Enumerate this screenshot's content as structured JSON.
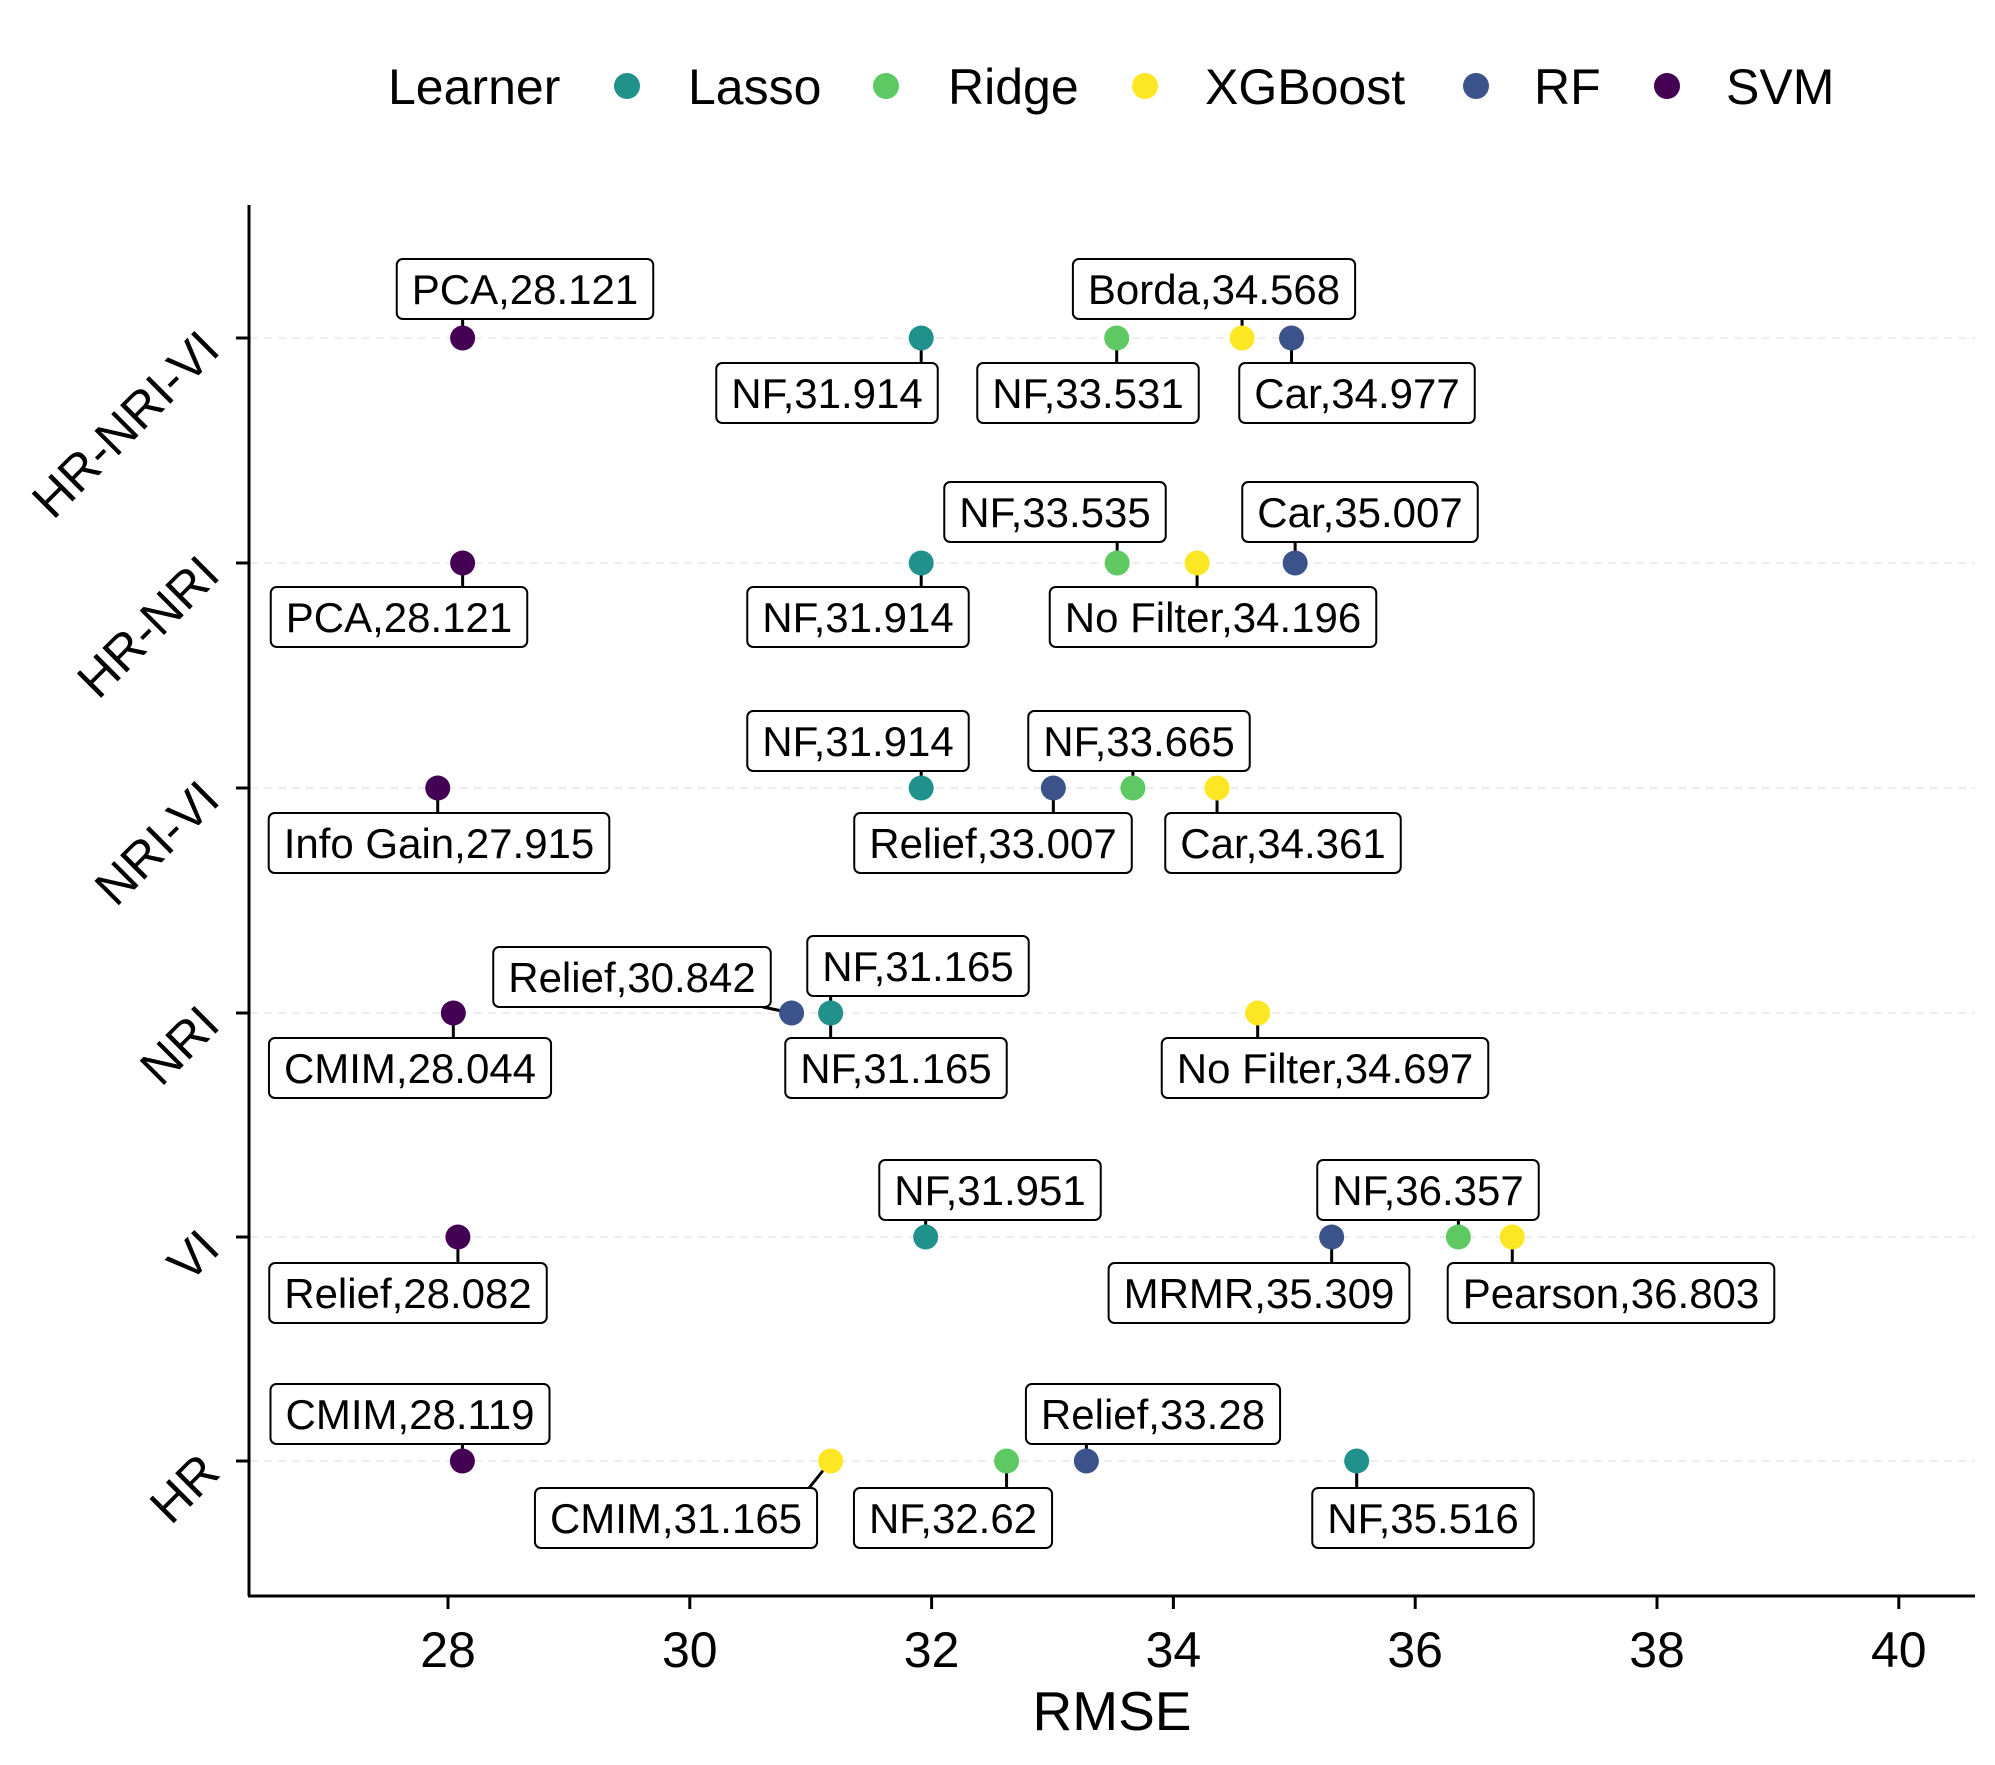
{
  "chart_data": {
    "type": "scatter",
    "xlabel": "RMSE",
    "ylabel": "",
    "xlim": [
      26.5,
      40.5
    ],
    "x_ticks": [
      "28",
      "30",
      "32",
      "34",
      "36",
      "38",
      "40"
    ],
    "y_categories": [
      "HR",
      "VI",
      "NRI",
      "NRI-VI",
      "HR-NRI",
      "HR-NRI-VI"
    ],
    "grid": "horizontal dashed at each category",
    "legend": {
      "title": "Learner",
      "position": "top",
      "entries": [
        {
          "name": "Lasso",
          "color": "#21918c"
        },
        {
          "name": "Ridge",
          "color": "#5ec962"
        },
        {
          "name": "XGBoost",
          "color": "#fde725"
        },
        {
          "name": "RF",
          "color": "#3b528b"
        },
        {
          "name": "SVM",
          "color": "#440154"
        }
      ]
    },
    "points": [
      {
        "category": "HR-NRI-VI",
        "learner": "SVM",
        "x": 28.121,
        "label": "PCA,28.121",
        "label_side": "above"
      },
      {
        "category": "HR-NRI-VI",
        "learner": "Lasso",
        "x": 31.914,
        "label": "NF,31.914",
        "label_side": "below"
      },
      {
        "category": "HR-NRI-VI",
        "learner": "Ridge",
        "x": 33.531,
        "label": "NF,33.531",
        "label_side": "below"
      },
      {
        "category": "HR-NRI-VI",
        "learner": "XGBoost",
        "x": 34.568,
        "label": "Borda,34.568",
        "label_side": "above"
      },
      {
        "category": "HR-NRI-VI",
        "learner": "RF",
        "x": 34.977,
        "label": "Car,34.977",
        "label_side": "below"
      },
      {
        "category": "HR-NRI",
        "learner": "SVM",
        "x": 28.121,
        "label": "PCA,28.121",
        "label_side": "below"
      },
      {
        "category": "HR-NRI",
        "learner": "Lasso",
        "x": 31.914,
        "label": "NF,31.914",
        "label_side": "below"
      },
      {
        "category": "HR-NRI",
        "learner": "Ridge",
        "x": 33.535,
        "label": "NF,33.535",
        "label_side": "above"
      },
      {
        "category": "HR-NRI",
        "learner": "XGBoost",
        "x": 34.196,
        "label": "No Filter,34.196",
        "label_side": "below"
      },
      {
        "category": "HR-NRI",
        "learner": "RF",
        "x": 35.007,
        "label": "Car,35.007",
        "label_side": "above"
      },
      {
        "category": "NRI-VI",
        "learner": "SVM",
        "x": 27.915,
        "label": "Info Gain,27.915",
        "label_side": "below"
      },
      {
        "category": "NRI-VI",
        "learner": "Lasso",
        "x": 31.914,
        "label": "NF,31.914",
        "label_side": "above"
      },
      {
        "category": "NRI-VI",
        "learner": "RF",
        "x": 33.007,
        "label": "Relief,33.007",
        "label_side": "below"
      },
      {
        "category": "NRI-VI",
        "learner": "Ridge",
        "x": 33.665,
        "label": "NF,33.665",
        "label_side": "above"
      },
      {
        "category": "NRI-VI",
        "learner": "XGBoost",
        "x": 34.361,
        "label": "Car,34.361",
        "label_side": "below"
      },
      {
        "category": "NRI",
        "learner": "SVM",
        "x": 28.044,
        "label": "CMIM,28.044",
        "label_side": "below"
      },
      {
        "category": "NRI",
        "learner": "RF",
        "x": 30.842,
        "label": "Relief,30.842",
        "label_side": "above"
      },
      {
        "category": "NRI",
        "learner": "Ridge",
        "x": 31.165,
        "label": "NF,31.165",
        "label_side": "above"
      },
      {
        "category": "NRI",
        "learner": "Lasso",
        "x": 31.165,
        "label": "NF,31.165",
        "label_side": "below"
      },
      {
        "category": "NRI",
        "learner": "XGBoost",
        "x": 34.697,
        "label": "No Filter,34.697",
        "label_side": "below"
      },
      {
        "category": "VI",
        "learner": "SVM",
        "x": 28.082,
        "label": "Relief,28.082",
        "label_side": "below"
      },
      {
        "category": "VI",
        "learner": "Lasso",
        "x": 31.951,
        "label": "NF,31.951",
        "label_side": "above"
      },
      {
        "category": "VI",
        "learner": "RF",
        "x": 35.309,
        "label": "MRMR,35.309",
        "label_side": "below"
      },
      {
        "category": "VI",
        "learner": "Ridge",
        "x": 36.357,
        "label": "NF,36.357",
        "label_side": "above"
      },
      {
        "category": "VI",
        "learner": "XGBoost",
        "x": 36.803,
        "label": "Pearson,36.803",
        "label_side": "below"
      },
      {
        "category": "HR",
        "learner": "SVM",
        "x": 28.119,
        "label": "CMIM,28.119",
        "label_side": "above"
      },
      {
        "category": "HR",
        "learner": "XGBoost",
        "x": 31.165,
        "label": "CMIM,31.165",
        "label_side": "below"
      },
      {
        "category": "HR",
        "learner": "Ridge",
        "x": 32.62,
        "label": "NF,32.62",
        "label_side": "below"
      },
      {
        "category": "HR",
        "learner": "RF",
        "x": 33.28,
        "label": "Relief,33.28",
        "label_side": "above"
      },
      {
        "category": "HR",
        "learner": "Lasso",
        "x": 35.516,
        "label": "NF,35.516",
        "label_side": "below"
      }
    ]
  }
}
